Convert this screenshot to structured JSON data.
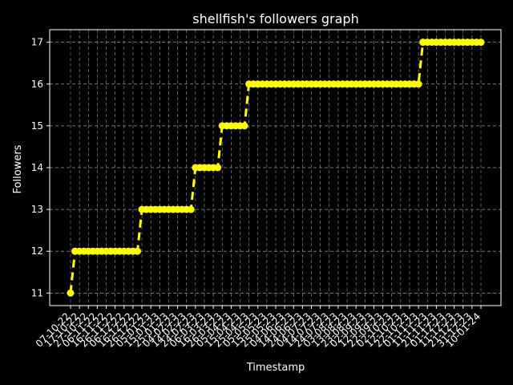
{
  "chart_data": {
    "type": "line",
    "title": "shellfish's followers graph",
    "xlabel": "Timestamp",
    "ylabel": "Followers",
    "ylim": [
      10.7,
      17.3
    ],
    "yticks": [
      11,
      12,
      13,
      14,
      15,
      16,
      17
    ],
    "grid": true,
    "legend": "none",
    "colors": {
      "background": "#000000",
      "line": "#ffff00",
      "text": "#ffffff",
      "grid": "#9a9a9a"
    },
    "line_style": "dashed",
    "marker": "circle",
    "x": [
      "07-10-22",
      "12-10-22",
      "17-10-22",
      "22-10-22",
      "27-10-22",
      "01-11-22",
      "06-11-22",
      "11-11-22",
      "16-11-22",
      "21-11-22",
      "26-11-22",
      "01-12-22",
      "06-12-22",
      "11-12-22",
      "16-12-22",
      "21-12-22",
      "26-12-22",
      "31-12-22",
      "05-01-23",
      "10-01-23",
      "15-01-23",
      "20-01-23",
      "25-01-23",
      "30-01-23",
      "04-02-23",
      "09-02-23",
      "14-02-23",
      "19-02-23",
      "24-02-23",
      "01-03-23",
      "06-03-23",
      "11-03-23",
      "16-03-23",
      "21-03-23",
      "26-03-23",
      "31-03-23",
      "05-04-23",
      "10-04-23",
      "15-04-23",
      "20-04-23",
      "25-04-23",
      "30-04-23",
      "05-05-23",
      "10-05-23",
      "15-05-23",
      "20-05-23",
      "25-05-23",
      "30-05-23",
      "04-06-23",
      "09-06-23",
      "14-06-23",
      "19-06-23",
      "24-06-23",
      "29-06-23",
      "04-07-23",
      "09-07-23",
      "14-07-23",
      "19-07-23",
      "24-07-23",
      "29-07-23",
      "03-08-23",
      "08-08-23",
      "13-08-23",
      "18-08-23",
      "23-08-23",
      "28-08-23",
      "02-09-23",
      "07-09-23",
      "12-09-23",
      "17-09-23",
      "22-09-23",
      "27-09-23",
      "02-10-23",
      "07-10-23",
      "12-10-23",
      "17-10-23",
      "22-10-23",
      "27-10-23",
      "01-11-23",
      "06-11-23",
      "11-11-23",
      "16-11-23",
      "21-11-23",
      "26-11-23",
      "01-12-23",
      "06-12-23",
      "11-12-23",
      "16-12-23",
      "21-12-23",
      "26-12-23",
      "31-12-23",
      "05-01-24",
      "10-01-24"
    ],
    "y": [
      11,
      12,
      12,
      12,
      12,
      12,
      12,
      12,
      12,
      12,
      12,
      12,
      12,
      12,
      12,
      12,
      13,
      13,
      13,
      13,
      13,
      13,
      13,
      13,
      13,
      13,
      13,
      13,
      14,
      14,
      14,
      14,
      14,
      14,
      15,
      15,
      15,
      15,
      15,
      15,
      16,
      16,
      16,
      16,
      16,
      16,
      16,
      16,
      16,
      16,
      16,
      16,
      16,
      16,
      16,
      16,
      16,
      16,
      16,
      16,
      16,
      16,
      16,
      16,
      16,
      16,
      16,
      16,
      16,
      16,
      16,
      16,
      16,
      16,
      16,
      16,
      16,
      16,
      16,
      17,
      17,
      17,
      17,
      17,
      17,
      17,
      17,
      17,
      17,
      17,
      17,
      17,
      17
    ],
    "tick_every": 2
  }
}
